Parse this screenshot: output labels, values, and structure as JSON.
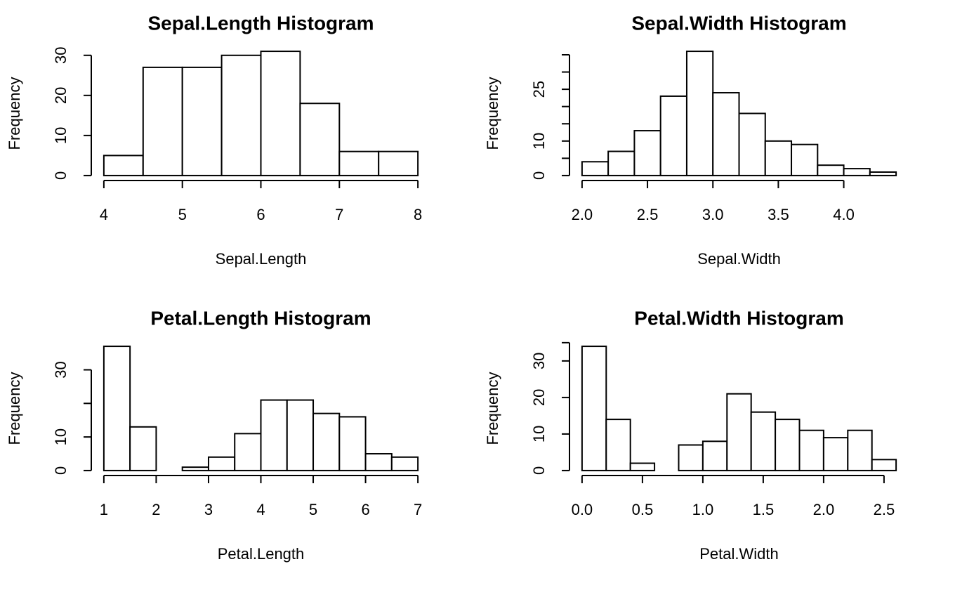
{
  "chart_data": [
    {
      "type": "histogram",
      "title": "Sepal.Length Histogram",
      "x_label": "Sepal.Length",
      "y_label": "Frequency",
      "bins": [
        4,
        4.5,
        5,
        5.5,
        6,
        6.5,
        7,
        7.5,
        8
      ],
      "counts": [
        5,
        27,
        27,
        30,
        31,
        18,
        6,
        6
      ],
      "xlim": [
        4,
        8
      ],
      "xticks": [
        4,
        5,
        6,
        7,
        8
      ],
      "ylim": [
        0,
        31
      ],
      "yticks": [
        0,
        10,
        20,
        30
      ],
      "color": "#ffffff"
    },
    {
      "type": "histogram",
      "title": "Sepal.Width Histogram",
      "x_label": "Sepal.Width",
      "y_label": "Frequency",
      "bins": [
        2.0,
        2.2,
        2.4,
        2.6,
        2.8,
        3.0,
        3.2,
        3.4,
        3.6,
        3.8,
        4.0,
        4.2,
        4.4
      ],
      "counts": [
        4,
        7,
        13,
        23,
        36,
        24,
        18,
        10,
        9,
        3,
        2,
        1
      ],
      "xlim": [
        2.0,
        4.4
      ],
      "xticks": [
        {
          "value": 2,
          "label": "2.0"
        },
        2.5,
        {
          "value": 3,
          "label": "3.0"
        },
        3.5,
        {
          "value": 4,
          "label": "4.0"
        }
      ],
      "ylim": [
        0,
        36
      ],
      "yticks": [
        0,
        10,
        25
      ],
      "yminorticks": [
        5,
        15,
        20,
        30,
        35
      ],
      "color": "#ffffff"
    },
    {
      "type": "histogram",
      "title": "Petal.Length Histogram",
      "x_label": "Petal.Length",
      "y_label": "Frequency",
      "bins": [
        1,
        1.5,
        2,
        2.5,
        3,
        3.5,
        4,
        4.5,
        5,
        5.5,
        6,
        6.5,
        7
      ],
      "counts": [
        37,
        13,
        0,
        1,
        4,
        11,
        21,
        21,
        17,
        16,
        5,
        4
      ],
      "xlim": [
        1,
        7
      ],
      "xticks": [
        1,
        2,
        3,
        4,
        5,
        6,
        7
      ],
      "ylim": [
        0,
        37
      ],
      "yticks": [
        0,
        10,
        30
      ],
      "yminorticks": [
        20
      ],
      "color": "#ffffff"
    },
    {
      "type": "histogram",
      "title": "Petal.Width Histogram",
      "x_label": "Petal.Width",
      "y_label": "Frequency",
      "bins": [
        0,
        0.2,
        0.4,
        0.6,
        0.8,
        1.0,
        1.2,
        1.4,
        1.6,
        1.8,
        2.0,
        2.2,
        2.4,
        2.6
      ],
      "counts": [
        34,
        14,
        2,
        0,
        7,
        8,
        21,
        16,
        14,
        11,
        9,
        11,
        3
      ],
      "xlim": [
        0,
        2.6
      ],
      "xticks": [
        {
          "value": 0,
          "label": "0.0"
        },
        0.5,
        {
          "value": 1,
          "label": "1.0"
        },
        1.5,
        {
          "value": 2,
          "label": "2.0"
        },
        2.5
      ],
      "ylim": [
        0,
        34
      ],
      "yticks": [
        0,
        10,
        20,
        30
      ],
      "yminorticks": [
        35
      ],
      "color": "#ffffff"
    }
  ]
}
